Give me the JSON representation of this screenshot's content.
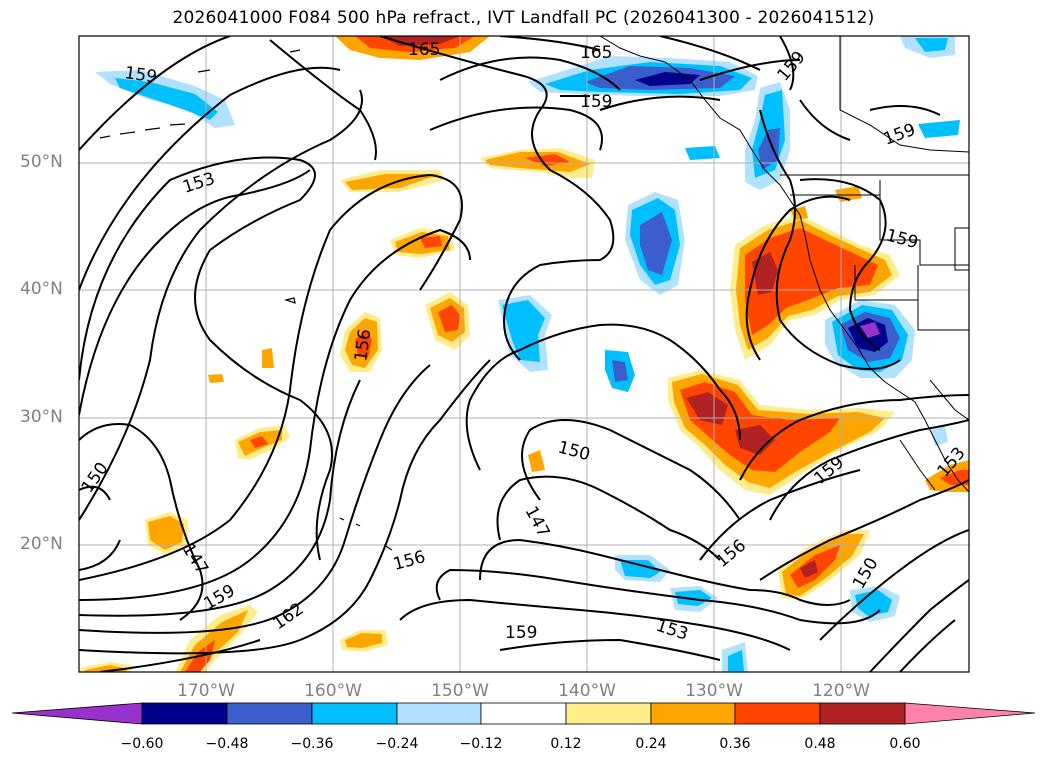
{
  "title": "2026041000 F084 500 hPa refract., IVT Landfall PC (2026041300 - 2026041512)",
  "lat_labels": [
    "50°N",
    "40°N",
    "30°N",
    "20°N"
  ],
  "lon_labels": [
    "170°W",
    "160°W",
    "150°W",
    "140°W",
    "130°W",
    "120°W"
  ],
  "contour_labels": [
    "165",
    "159",
    "159",
    "153",
    "156",
    "159",
    "150",
    "147",
    "159",
    "162",
    "156",
    "150",
    "147",
    "156",
    "153",
    "159",
    "150",
    "165",
    "159",
    "159",
    "159",
    "153"
  ],
  "colorbar": {
    "ticks": [
      "−0.60",
      "−0.48",
      "−0.36",
      "−0.24",
      "−0.12",
      "0.12",
      "0.24",
      "0.36",
      "0.48",
      "0.60"
    ],
    "colors": [
      "#9932cc",
      "#00008b",
      "#3a5fcd",
      "#00bfff",
      "#b0e2ff",
      "#ffffff",
      "#ffec8b",
      "#ffa500",
      "#ff4500",
      "#b22222",
      "#ff82ab"
    ]
  }
}
